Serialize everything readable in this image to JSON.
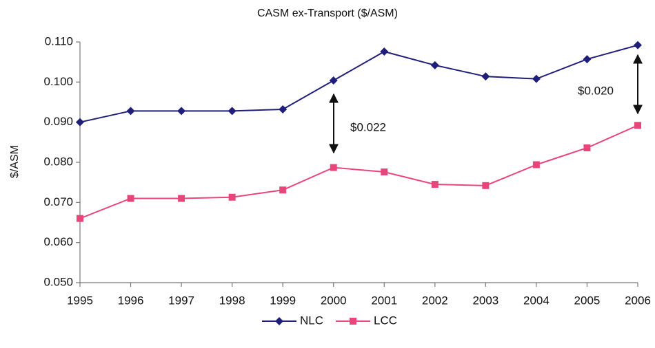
{
  "chart_data": {
    "type": "line",
    "title": "CASM ex-Transport ($/ASM)",
    "y_label": "$/ASM",
    "categories": [
      "1995",
      "1996",
      "1997",
      "1998",
      "1999",
      "2000",
      "2001",
      "2002",
      "2003",
      "2004",
      "2005",
      "2006"
    ],
    "series": [
      {
        "name": "NLC",
        "color": "#1f1f7a",
        "marker": "diamond",
        "values": [
          0.09,
          0.0928,
          0.0928,
          0.0928,
          0.0932,
          0.1004,
          0.1076,
          0.1042,
          0.1014,
          0.1008,
          0.1057,
          0.1092
        ]
      },
      {
        "name": "LCC",
        "color": "#e8457a",
        "marker": "square",
        "values": [
          0.066,
          0.071,
          0.071,
          0.0713,
          0.0731,
          0.0787,
          0.0776,
          0.0745,
          0.0742,
          0.0794,
          0.0836,
          0.0892
        ]
      }
    ],
    "ylim": [
      0.05,
      0.11
    ],
    "yticks": [
      {
        "value": 0.05,
        "label": "0.050"
      },
      {
        "value": 0.06,
        "label": "0.060"
      },
      {
        "value": 0.07,
        "label": "0.070"
      },
      {
        "value": 0.08,
        "label": "0.080"
      },
      {
        "value": 0.09,
        "label": "0.090"
      },
      {
        "value": 0.1,
        "label": "0.100"
      },
      {
        "value": 0.11,
        "label": "0.110"
      }
    ],
    "annotations": [
      {
        "text": "$0.022"
      },
      {
        "text": "$0.020"
      }
    ],
    "grid": false,
    "legend": "bottom"
  }
}
